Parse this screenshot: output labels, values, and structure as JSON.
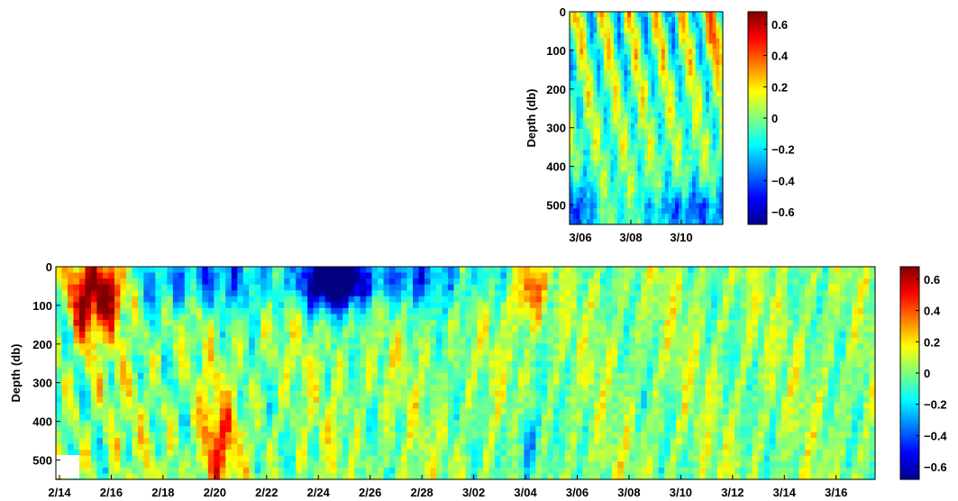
{
  "chart_data": [
    {
      "type": "heatmap",
      "ylabel": "Depth (db)",
      "ylim": [
        0,
        550
      ],
      "y_ticks": [
        "0",
        "100",
        "200",
        "300",
        "400",
        "500"
      ],
      "x_ticks": [
        "3/06",
        "3/08",
        "3/10"
      ],
      "x_range": [
        "3/05",
        "3/11"
      ],
      "colorbar": {
        "clim": [
          -0.68,
          0.68
        ],
        "ticks": [
          "0.6",
          "0.4",
          "0.2",
          "0",
          "−0.2",
          "−0.4",
          "−0.6"
        ]
      },
      "colormap": "jet",
      "description_values": {
        "warm_bands_surface_days": [
          "3/05",
          "3/06",
          "3/07",
          "3/08",
          "3/09",
          "3/10"
        ],
        "deep_minimum": -0.6
      }
    },
    {
      "type": "heatmap",
      "ylabel": "Depth (db)",
      "ylim": [
        0,
        550
      ],
      "y_ticks": [
        "0",
        "100",
        "200",
        "300",
        "400",
        "500"
      ],
      "x_ticks": [
        "2/14",
        "2/16",
        "2/18",
        "2/20",
        "2/22",
        "2/24",
        "2/26",
        "2/28",
        "3/02",
        "3/04",
        "3/06",
        "3/08",
        "3/10",
        "3/12",
        "3/14",
        "3/16"
      ],
      "x_range": [
        "2/14",
        "3/17"
      ],
      "colorbar": {
        "clim": [
          -0.68,
          0.68
        ],
        "ticks": [
          "0.6",
          "0.4",
          "0.2",
          "0",
          "−0.2",
          "−0.4",
          "−0.6"
        ]
      },
      "colormap": "jet",
      "features": [
        {
          "date": "2/15",
          "depth_range": [
            0,
            150
          ],
          "value": 0.65
        },
        {
          "date": "2/16",
          "depth_range": [
            0,
            120
          ],
          "value": 0.6
        },
        {
          "date": "2/24",
          "depth_range": [
            0,
            80
          ],
          "value": -0.6
        },
        {
          "date": "2/25",
          "depth_range": [
            0,
            80
          ],
          "value": -0.55
        },
        {
          "date": "3/04",
          "depth_range": [
            0,
            110
          ],
          "value": 0.5
        },
        {
          "date": "3/04",
          "depth_range": [
            400,
            550
          ],
          "value": -0.3
        },
        {
          "date": "2/20",
          "depth_range": [
            380,
            550
          ],
          "value": 0.45
        }
      ]
    }
  ]
}
